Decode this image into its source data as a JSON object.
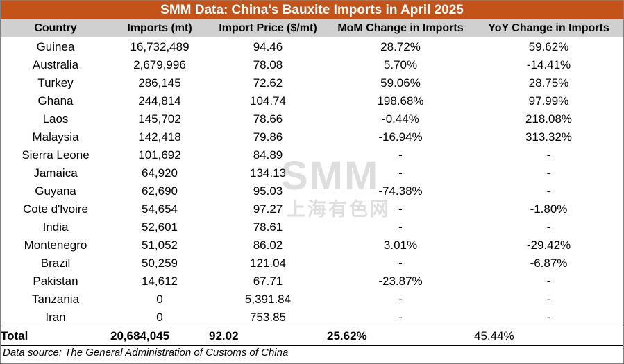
{
  "title": "SMM Data: China's Bauxite Imports in April 2025",
  "columns": [
    "Country",
    "Imports (mt)",
    "Import Price ($/mt)",
    "MoM Change in Imports",
    "YoY Change in Imports"
  ],
  "rows": [
    [
      "Guinea",
      "16,732,489",
      "94.46",
      "28.72%",
      "59.62%"
    ],
    [
      "Australia",
      "2,679,996",
      "78.08",
      "5.70%",
      "-14.41%"
    ],
    [
      "Turkey",
      "286,145",
      "72.62",
      "59.06%",
      "28.75%"
    ],
    [
      "Ghana",
      "244,814",
      "104.74",
      "198.68%",
      "97.99%"
    ],
    [
      "Laos",
      "145,702",
      "78.66",
      "-0.44%",
      "218.08%"
    ],
    [
      "Malaysia",
      "142,418",
      "79.86",
      "-16.94%",
      "313.32%"
    ],
    [
      "Sierra Leone",
      "101,692",
      "84.89",
      "-",
      "-"
    ],
    [
      "Jamaica",
      "64,920",
      "134.13",
      "-",
      "-"
    ],
    [
      "Guyana",
      "62,690",
      "95.03",
      "-74.38%",
      "-"
    ],
    [
      "Cote d'lvoire",
      "54,654",
      "97.27",
      "-",
      "-1.80%"
    ],
    [
      "India",
      "52,601",
      "78.61",
      "-",
      "-"
    ],
    [
      "Montenegro",
      "51,052",
      "86.02",
      "3.01%",
      "-29.42%"
    ],
    [
      "Brazil",
      "50,259",
      "121.04",
      "-",
      "-6.87%"
    ],
    [
      "Pakistan",
      "14,612",
      "67.71",
      "-23.87%",
      "-"
    ],
    [
      "Tanzania",
      "0",
      "5,391.84",
      "-",
      "-"
    ],
    [
      "Iran",
      "0",
      "753.85",
      "-",
      "-"
    ]
  ],
  "total": [
    "Total",
    "20,684,045",
    "92.02",
    "25.62%",
    "45.44%"
  ],
  "source": "Data source:  The General Administration of Customs of China",
  "watermark": {
    "latin": "SMM",
    "cjk": "上海有色网"
  },
  "colors": {
    "title_bg": "#c4531a",
    "header_bg": "#d0d0d0"
  }
}
